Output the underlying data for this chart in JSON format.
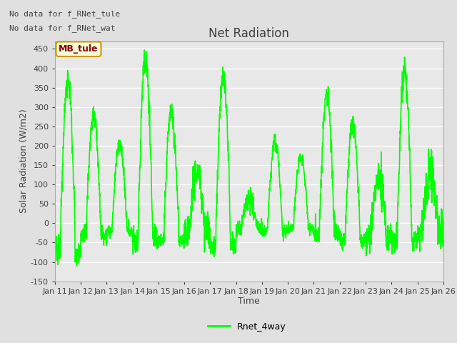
{
  "title": "Net Radiation",
  "xlabel": "Time",
  "ylabel": "Solar Radiation (W/m2)",
  "ylim": [
    -150,
    470
  ],
  "yticks": [
    -150,
    -100,
    -50,
    0,
    50,
    100,
    150,
    200,
    250,
    300,
    350,
    400,
    450
  ],
  "xlim_days": 15,
  "xtick_labels": [
    "Jan 11",
    "Jan 12",
    "Jan 13",
    "Jan 14",
    "Jan 15",
    "Jan 16",
    "Jan 17",
    "Jan 18",
    "Jan 19",
    "Jan 20",
    "Jan 21",
    "Jan 22",
    "Jan 23",
    "Jan 24",
    "Jan 25",
    "Jan 26"
  ],
  "line_color": "#00ff00",
  "line_width": 1.2,
  "background_color": "#e0e0e0",
  "plot_bg_color": "#e8e8e8",
  "text_color": "#404040",
  "annotation_text1": "No data for f_RNet_tule",
  "annotation_text2": "No data for f_RNet_wat",
  "legend_label": "Rnet_4way",
  "tooltip_label": "MB_tule",
  "tooltip_color": "#8b0000",
  "tooltip_bg": "#ffffe0",
  "grid_color": "#ffffff",
  "title_fontsize": 12,
  "label_fontsize": 9,
  "tick_fontsize": 8
}
